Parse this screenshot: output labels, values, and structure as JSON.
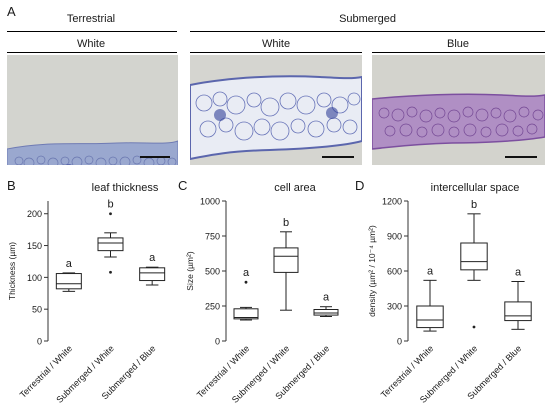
{
  "panel_a": {
    "letter": "A",
    "group_terrestrial": "Terrestrial",
    "group_submerged": "Submerged",
    "sub_labels": [
      "White",
      "White",
      "Blue"
    ]
  },
  "panels": [
    {
      "letter": "B",
      "title": "leaf thickness"
    },
    {
      "letter": "C",
      "title": "cell area"
    },
    {
      "letter": "D",
      "title": "intercellular space"
    }
  ],
  "chart_data": [
    {
      "type": "box",
      "title": "leaf thickness",
      "ylabel": "Thickness (µm)",
      "ylim": [
        0,
        220
      ],
      "yticks": [
        0,
        50,
        100,
        150,
        200
      ],
      "categories": [
        "Terrestrial / White",
        "Submerged / White",
        "Submerged / Blue"
      ],
      "boxes": [
        {
          "min": 78,
          "q1": 82,
          "median": 90,
          "q3": 106,
          "max": 107,
          "outliers": []
        },
        {
          "min": 132,
          "q1": 142,
          "median": 154,
          "q3": 162,
          "max": 170,
          "outliers": [
            200,
            108
          ]
        },
        {
          "min": 88,
          "q1": 95,
          "median": 107,
          "q3": 115,
          "max": 116,
          "outliers": []
        }
      ],
      "letters": [
        "a",
        "b",
        "a"
      ]
    },
    {
      "type": "box",
      "title": "cell area",
      "ylabel": "Size (µm²)",
      "ylim": [
        0,
        1000
      ],
      "yticks": [
        0,
        250,
        500,
        750,
        1000
      ],
      "categories": [
        "Terrestrial / White",
        "Submerged / White",
        "Submerged / Blue"
      ],
      "boxes": [
        {
          "min": 150,
          "q1": 158,
          "median": 168,
          "q3": 230,
          "max": 240,
          "outliers": [
            420
          ]
        },
        {
          "min": 220,
          "q1": 490,
          "median": 605,
          "q3": 665,
          "max": 780,
          "outliers": []
        },
        {
          "min": 175,
          "q1": 185,
          "median": 200,
          "q3": 225,
          "max": 245,
          "outliers": []
        }
      ],
      "letters": [
        "a",
        "b",
        "a"
      ]
    },
    {
      "type": "box",
      "title": "intercellular space",
      "ylabel": "density (µm² / 10⁻⁴ µm²)",
      "ylim": [
        0,
        1200
      ],
      "yticks": [
        0,
        300,
        600,
        900,
        1200
      ],
      "categories": [
        "Terrestrial / White",
        "Submerged / White",
        "Submerged / Blue"
      ],
      "boxes": [
        {
          "min": 85,
          "q1": 115,
          "median": 180,
          "q3": 300,
          "max": 520,
          "outliers": []
        },
        {
          "min": 520,
          "q1": 610,
          "median": 680,
          "q3": 840,
          "max": 1090,
          "outliers": [
            120
          ]
        },
        {
          "min": 100,
          "q1": 175,
          "median": 215,
          "q3": 335,
          "max": 510,
          "outliers": []
        }
      ],
      "letters": [
        "a",
        "b",
        "a"
      ]
    }
  ]
}
